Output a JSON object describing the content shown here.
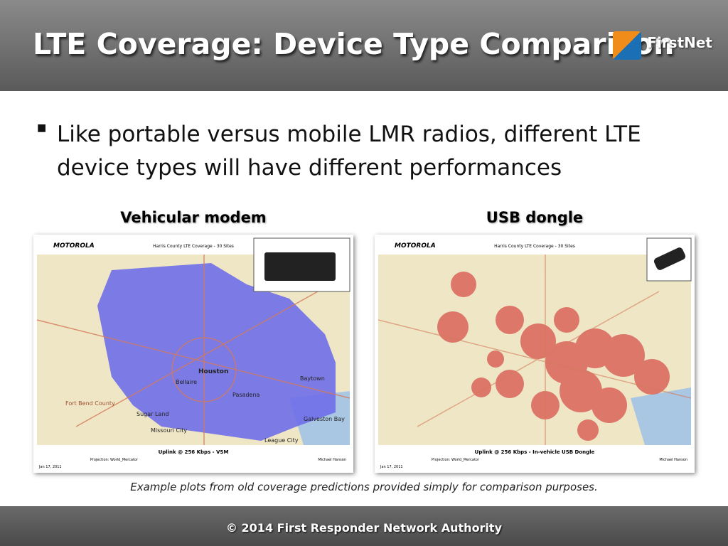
{
  "header": {
    "title": "LTE Coverage: Device Type Comparison",
    "logo": "FirstNet"
  },
  "bullets": [
    "Like portable versus mobile LMR radios, different LTE device types will have different performances"
  ],
  "maps": [
    {
      "caption": "Vehicular modem",
      "brand": "MOTOROLA",
      "title": "Harris County LTE Coverage - 30 Sites",
      "subtitle": "Uplink @ 256 Kbps - VSM",
      "projection": "Projection: World_Mercator",
      "author": "Michael Hanson",
      "date": "Jan 17, 2011",
      "places": [
        "Houston",
        "Pasadena",
        "Baytown",
        "Bellaire",
        "Sugar Land",
        "Missouri City",
        "Fort Bend County",
        "Galveston Bay",
        "League City"
      ]
    },
    {
      "caption": "USB dongle",
      "brand": "MOTOROLA",
      "title": "Harris County LTE Coverage - 30 Sites",
      "subtitle": "Uplink @ 256 Kbps - In-vehicle USB Dongle",
      "projection": "Projection: World_Mercator",
      "author": "Michael Hanson",
      "date": "Jan 17, 2011",
      "places": []
    }
  ],
  "note": "Example plots from old coverage predictions provided simply for comparison purposes.",
  "footer": "© 2014 First Responder Network Authority"
}
